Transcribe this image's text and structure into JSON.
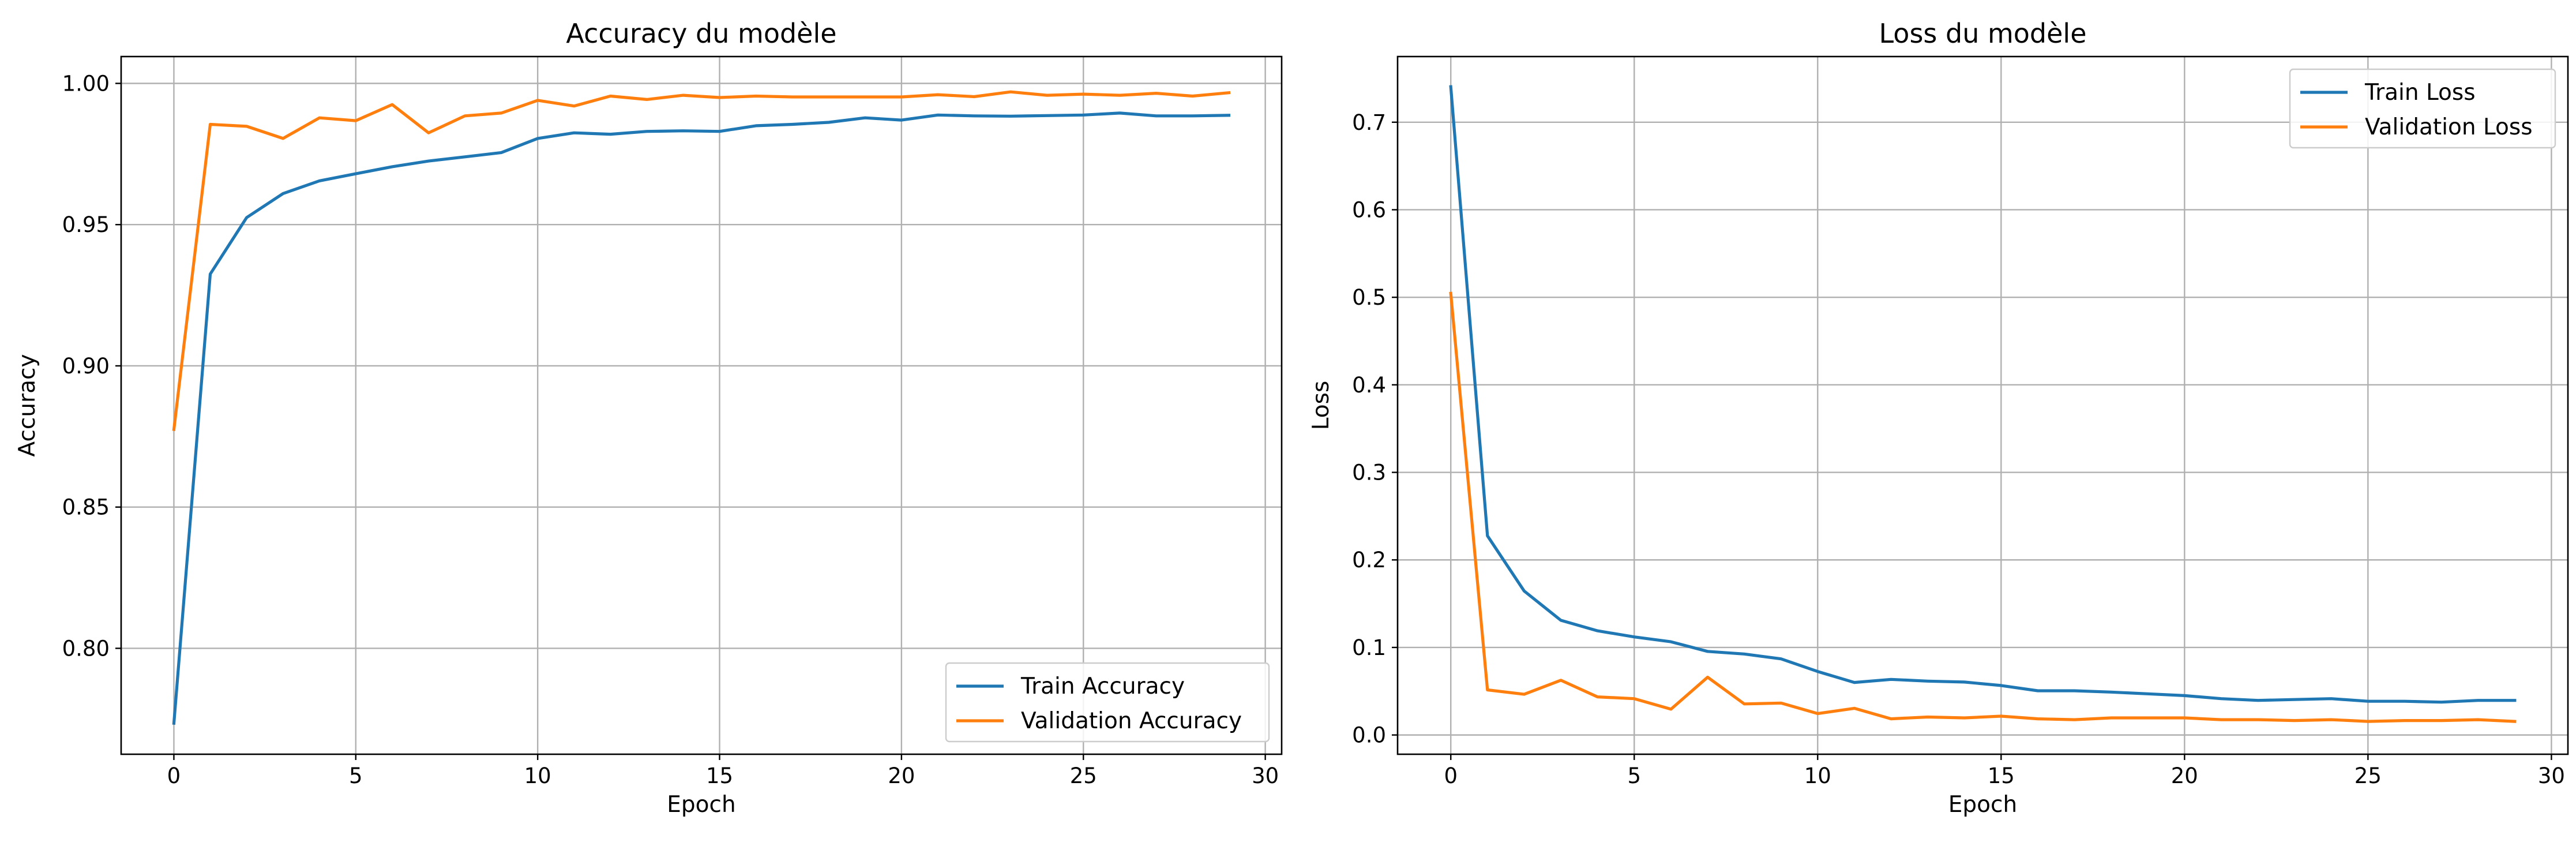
{
  "colors": {
    "train": "#1f77b4",
    "validation": "#ff7f0e",
    "grid": "#b0b0b0"
  },
  "chart_data": [
    {
      "type": "line",
      "title": "Accuracy du modèle",
      "xlabel": "Epoch",
      "ylabel": "Accuracy",
      "xlim": [
        -1.45,
        30.45
      ],
      "ylim": [
        0.7625,
        1.0095
      ],
      "xticks": [
        0,
        5,
        10,
        15,
        20,
        25,
        30
      ],
      "xtick_labels": [
        "0",
        "5",
        "10",
        "15",
        "20",
        "25",
        "30"
      ],
      "yticks": [
        0.8,
        0.85,
        0.9,
        0.95,
        1.0
      ],
      "ytick_labels": [
        "0.80",
        "0.85",
        "0.90",
        "0.95",
        "1.00"
      ],
      "grid": true,
      "legend_position": "bottom-right",
      "x": [
        0,
        1,
        2,
        3,
        4,
        5,
        6,
        7,
        8,
        9,
        10,
        11,
        12,
        13,
        14,
        15,
        16,
        17,
        18,
        19,
        20,
        21,
        22,
        23,
        24,
        25,
        26,
        27,
        28,
        29
      ],
      "series": [
        {
          "name": "Train Accuracy",
          "color_key": "train",
          "values": [
            0.7735,
            0.9325,
            0.9525,
            0.961,
            0.9655,
            0.968,
            0.9705,
            0.9725,
            0.974,
            0.9755,
            0.9805,
            0.9825,
            0.982,
            0.983,
            0.9832,
            0.983,
            0.985,
            0.9855,
            0.9862,
            0.9878,
            0.987,
            0.9888,
            0.9885,
            0.9884,
            0.9886,
            0.9888,
            0.9895,
            0.9885,
            0.9885,
            0.9887
          ]
        },
        {
          "name": "Validation Accuracy",
          "color_key": "validation",
          "values": [
            0.8775,
            0.9855,
            0.9848,
            0.9805,
            0.9878,
            0.9868,
            0.9925,
            0.9825,
            0.9885,
            0.9895,
            0.994,
            0.992,
            0.9955,
            0.9943,
            0.9958,
            0.995,
            0.9955,
            0.9952,
            0.9952,
            0.9952,
            0.9952,
            0.996,
            0.9953,
            0.997,
            0.9958,
            0.9962,
            0.9958,
            0.9965,
            0.9955,
            0.9967
          ]
        }
      ]
    },
    {
      "type": "line",
      "title": "Loss du modèle",
      "xlabel": "Epoch",
      "ylabel": "Loss",
      "xlim": [
        -1.45,
        30.45
      ],
      "ylim": [
        -0.022,
        0.775
      ],
      "xticks": [
        0,
        5,
        10,
        15,
        20,
        25,
        30
      ],
      "xtick_labels": [
        "0",
        "5",
        "10",
        "15",
        "20",
        "25",
        "30"
      ],
      "yticks": [
        0.0,
        0.1,
        0.2,
        0.3,
        0.4,
        0.5,
        0.6,
        0.7
      ],
      "ytick_labels": [
        "0.0",
        "0.1",
        "0.2",
        "0.3",
        "0.4",
        "0.5",
        "0.6",
        "0.7"
      ],
      "grid": true,
      "legend_position": "top-right",
      "x": [
        0,
        1,
        2,
        3,
        4,
        5,
        6,
        7,
        8,
        9,
        10,
        11,
        12,
        13,
        14,
        15,
        16,
        17,
        18,
        19,
        20,
        21,
        22,
        23,
        24,
        25,
        26,
        27,
        28,
        29
      ],
      "series": [
        {
          "name": "Train Loss",
          "color_key": "train",
          "values": [
            0.7405,
            0.2275,
            0.1645,
            0.131,
            0.119,
            0.112,
            0.1065,
            0.0955,
            0.0925,
            0.087,
            0.0725,
            0.06,
            0.0635,
            0.0615,
            0.0605,
            0.0565,
            0.0505,
            0.0505,
            0.049,
            0.047,
            0.045,
            0.0415,
            0.0395,
            0.0405,
            0.0415,
            0.0385,
            0.0385,
            0.0375,
            0.0395,
            0.0395
          ]
        },
        {
          "name": "Validation Loss",
          "color_key": "validation",
          "values": [
            0.5045,
            0.0515,
            0.0465,
            0.0625,
            0.0435,
            0.0415,
            0.0295,
            0.066,
            0.0355,
            0.0365,
            0.0245,
            0.0305,
            0.0185,
            0.0205,
            0.0195,
            0.0215,
            0.0185,
            0.0175,
            0.0195,
            0.0195,
            0.0195,
            0.0175,
            0.0175,
            0.0165,
            0.0175,
            0.0155,
            0.0165,
            0.0165,
            0.0175,
            0.0155
          ]
        }
      ]
    }
  ]
}
